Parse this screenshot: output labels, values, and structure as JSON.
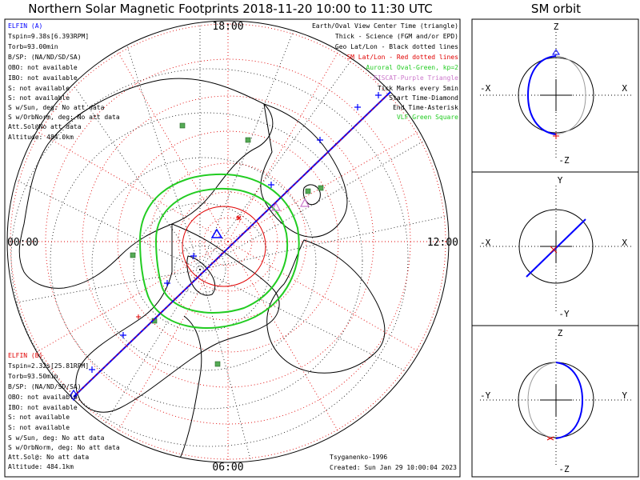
{
  "title": "Northern Solar Magnetic Footprints 2018-11-20 10:00 to 11:30 UTC",
  "orbit_title": "SM orbit",
  "map": {
    "mlt_labels": {
      "top": "18:00",
      "left": "00:00",
      "right": "12:00",
      "bottom": "06:00"
    }
  },
  "elfin_a": {
    "name": "ELFIN (A)",
    "lines": [
      "Tspin=9.38s[6.393RPM]",
      "Torb=93.00min",
      "B/SP: (NA/ND/SD/SA)",
      "OBO: not available",
      "IBO: not available",
      "S: not available",
      "S: not available",
      "S w/Sun, deg: No att data",
      "S w/OrbNorm, deg: No att data",
      "Att.Sol@No att data",
      "Altitude: 484.0km"
    ]
  },
  "elfin_b": {
    "name": "ELFIN (B)",
    "lines": [
      "Tspin=2.32s[25.81RPM]",
      "Torb=93.50min",
      "B/SP: (NA/ND/SD/SA)",
      "OBO: not available",
      "IBO: not available",
      "S: not available",
      "S: not available",
      "S w/Sun, deg: No att data",
      "S w/OrbNorm, deg: No att data",
      "Att.Sol@: No att data",
      "Altitude: 484.1km"
    ]
  },
  "legend": [
    {
      "text": "Earth/Oval View Center Time (triangle)",
      "color": "#000000"
    },
    {
      "text": "Thick - Science (FGM and/or EPD)",
      "color": "#000000"
    },
    {
      "text": "Geo Lat/Lon - Black dotted lines",
      "color": "#000000"
    },
    {
      "text": "SM Lat/Lon - Red dotted lines",
      "color": "#e00000"
    },
    {
      "text": "Auroral Oval-Green, kp=2",
      "color": "#22cc22"
    },
    {
      "text": "EISCAT-Purple Triangle",
      "color": "#cc77cc"
    },
    {
      "text": "Tick Marks every 5min",
      "color": "#000000"
    },
    {
      "text": "Start Time-Diamond",
      "color": "#000000"
    },
    {
      "text": "End Time-Asterisk",
      "color": "#000000"
    },
    {
      "text": "VLF-Green Square",
      "color": "#22cc22"
    }
  ],
  "credits": [
    "Tsyganenko-1996",
    "Created: Sun Jan 29 10:00:04 2023"
  ],
  "orbit_panels": [
    {
      "top": "Z",
      "bottom": "-Z",
      "left": "-X",
      "right": "X"
    },
    {
      "top": "Y",
      "bottom": "-Y",
      "left": "-X",
      "right": "X"
    },
    {
      "top": "Z",
      "bottom": "-Z",
      "left": "-Y",
      "right": "Y"
    }
  ],
  "colors": {
    "elfin_a": "#0000ff",
    "elfin_b": "#e00000",
    "auroral_oval": "#22cc22",
    "sm_grid": "#e00000",
    "geo_grid": "#000000",
    "vlf": "#44aa44",
    "eiscat": "#cc77cc"
  }
}
